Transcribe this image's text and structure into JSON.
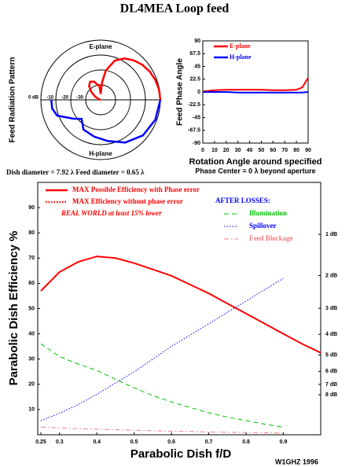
{
  "title": "DL4MEA Loop feed",
  "dish_note": "Dish diameter = 7.92 λ Feed diameter = 0.65 λ",
  "credit": "W1GHZ 1996",
  "chart_data": [
    {
      "type": "polar",
      "ylabel": "Feed Radiation Pattern",
      "rlim": [
        -40,
        0
      ],
      "rticks": [
        {
          "value": 0,
          "label": "0 dB"
        },
        -10,
        -20,
        -30
      ],
      "annotations": [
        "E-plane",
        "H-plane"
      ],
      "series": [
        {
          "name": "E-plane",
          "color": "#ff0000",
          "theta": [
            0,
            10,
            20,
            30,
            40,
            50,
            60,
            70,
            80,
            85,
            90,
            95,
            100,
            110,
            120,
            130,
            140,
            150,
            160,
            170,
            180
          ],
          "values": [
            0,
            -0.3,
            -1,
            -2,
            -3.5,
            -5.5,
            -8,
            -12,
            -20,
            -28,
            -36,
            -30,
            -30,
            -27,
            -26,
            -28,
            -32,
            -36,
            -39,
            -40,
            -40
          ]
        },
        {
          "name": "H-plane",
          "color": "#0000ff",
          "theta": [
            0,
            -20,
            -40,
            -60,
            -80,
            -100,
            -120,
            -135,
            -145,
            -160,
            -170,
            -180
          ],
          "values": [
            0,
            -1,
            -3,
            -7,
            -12,
            -15,
            -17,
            -22,
            -18,
            -9,
            -7,
            -7
          ]
        }
      ]
    },
    {
      "type": "line",
      "ylabel": "Feed Phase Angle",
      "xlabel": "Rotation Angle around specified",
      "note": "Phase Center = 0 λ beyond aperture",
      "x": [
        0,
        10,
        20,
        30,
        40,
        50,
        60,
        70,
        80,
        85,
        90
      ],
      "xlim": [
        0,
        90
      ],
      "xticks": [
        0,
        10,
        20,
        30,
        40,
        50,
        60,
        70,
        80,
        90
      ],
      "ylim": [
        -90,
        90
      ],
      "yticks": [
        90,
        67.5,
        45,
        22.5,
        0,
        -22.5,
        -45,
        -67.5,
        -90
      ],
      "legend": "top-left",
      "series": [
        {
          "name": "E-plane",
          "color": "#ff0000",
          "values": [
            1,
            3,
            4,
            4,
            4,
            4,
            3,
            3,
            4,
            8,
            25
          ]
        },
        {
          "name": "H-plane",
          "color": "#0000ff",
          "values": [
            0,
            0,
            0,
            -1,
            -1,
            -1,
            -1,
            -1,
            -1,
            -1,
            0
          ]
        }
      ]
    },
    {
      "type": "line",
      "xlabel": "Parabolic Dish f/D",
      "ylabel": "Parabolic Dish Efficiency %",
      "annotations": [
        "AFTER LOSSES:",
        "REAL WORLD at least 15% lower"
      ],
      "x": [
        0.25,
        0.3,
        0.35,
        0.4,
        0.45,
        0.5,
        0.55,
        0.6,
        0.65,
        0.7,
        0.75,
        0.8,
        0.85,
        0.9,
        0.95,
        1.0
      ],
      "xlim": [
        0.25,
        1.0
      ],
      "xticks": [
        0.25,
        0.3,
        0.4,
        0.5,
        0.6,
        0.7,
        0.8,
        0.9
      ],
      "ylim": [
        0,
        100
      ],
      "yticks": [
        10,
        20,
        30,
        40,
        50,
        60,
        70,
        80,
        90
      ],
      "y2lim": [
        0,
        100
      ],
      "y2ticks": [
        {
          "value": 79.43,
          "label": "1 dB"
        },
        {
          "value": 63.1,
          "label": "2 dB"
        },
        {
          "value": 50.12,
          "label": "3 dB"
        },
        {
          "value": 39.81,
          "label": "4 dB"
        },
        {
          "value": 31.62,
          "label": "5 dB"
        },
        {
          "value": 25.12,
          "label": "6 dB"
        },
        {
          "value": 19.95,
          "label": "7 dB"
        },
        {
          "value": 15.85,
          "label": "8 dB"
        }
      ],
      "series": [
        {
          "name": "MAX Possible Efficiency with Phase error",
          "color": "#ff0000",
          "style": "solid",
          "values": [
            57,
            64.5,
            68.5,
            70.7,
            70,
            68,
            65.5,
            63,
            59.5,
            56,
            52,
            48,
            44,
            40,
            36,
            32.5
          ]
        },
        {
          "name": "MAX Efficiency without phase error",
          "color": "#ff0000",
          "style": "dotted",
          "values": [
            57,
            64.5,
            68.5,
            70.7,
            70,
            68,
            65.5,
            63,
            59.5,
            56,
            52,
            48,
            44,
            40,
            36,
            32.5
          ]
        },
        {
          "name": "Illumination",
          "color": "#00c000",
          "style": "dashed",
          "values": [
            36,
            31,
            28,
            25.5,
            22,
            18.6,
            15.5,
            13,
            10.8,
            8.7,
            7,
            5.6,
            4.2,
            3,
            null,
            null
          ]
        },
        {
          "name": "Spillover",
          "color": "#0000ff",
          "style": "dotted",
          "values": [
            5.6,
            8.5,
            12,
            16,
            20.5,
            25,
            30,
            35,
            39.5,
            44,
            48.5,
            53,
            57.5,
            62,
            null,
            null
          ]
        },
        {
          "name": "Feed Blockage",
          "color": "#f08080",
          "style": "dashdot",
          "values": [
            3,
            2.7,
            2.4,
            2.2,
            2,
            1.8,
            1.6,
            1.4,
            1.3,
            1.1,
            1,
            0.9,
            0.8,
            0.7,
            null,
            null
          ]
        }
      ]
    }
  ]
}
